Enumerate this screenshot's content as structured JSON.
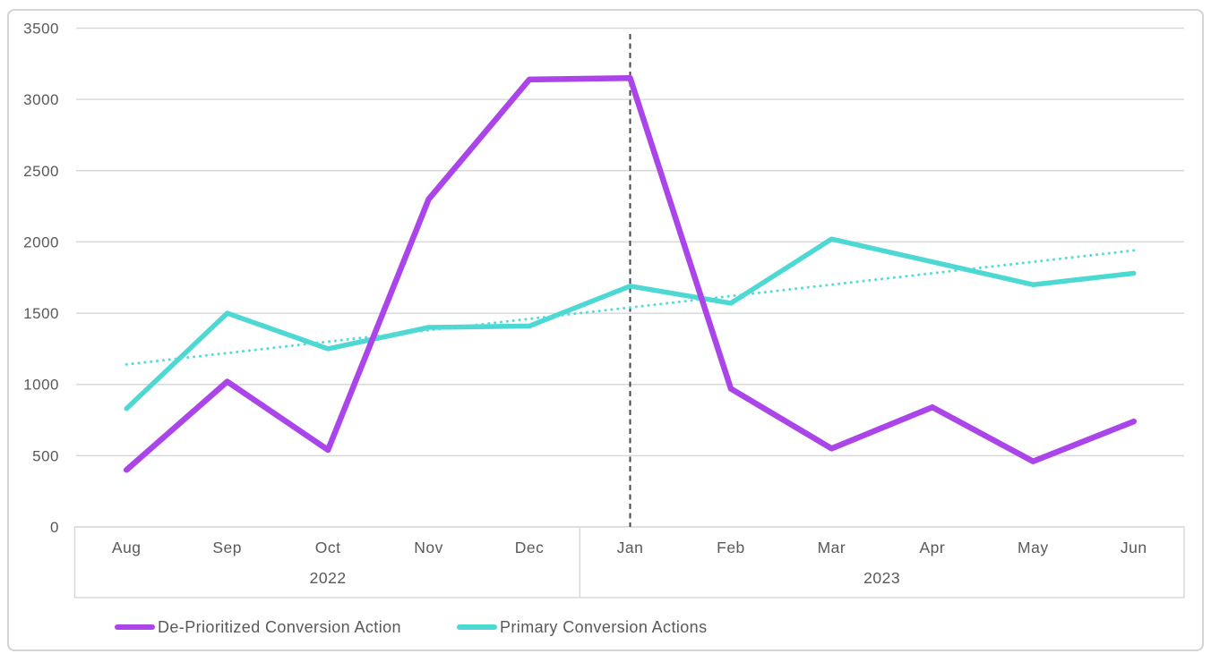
{
  "chart_data": {
    "type": "line",
    "title": "",
    "categories": [
      "Aug",
      "Sep",
      "Oct",
      "Nov",
      "Dec",
      "Jan",
      "Feb",
      "Mar",
      "Apr",
      "May",
      "Jun"
    ],
    "year_groups": [
      {
        "label": "2022",
        "months": 5
      },
      {
        "label": "2023",
        "months": 6
      }
    ],
    "series": [
      {
        "name": "De-Prioritized Conversion Action",
        "color": "#ab44e9",
        "values": [
          400,
          1020,
          540,
          2300,
          3140,
          3150,
          970,
          550,
          840,
          460,
          740
        ]
      },
      {
        "name": "Primary Conversion Actions",
        "color": "#4dd8d4",
        "values": [
          830,
          1500,
          1250,
          1400,
          1410,
          1690,
          1570,
          2020,
          1860,
          1700,
          1780
        ]
      }
    ],
    "trendline": {
      "for_series": "Primary Conversion Actions",
      "style": "dotted",
      "color": "#56dbd6",
      "start_value": 1140,
      "end_value": 1940
    },
    "annotation_vline": {
      "x_category": "Jan",
      "style": "dashed",
      "color": "#474747"
    },
    "y_axis": {
      "min": 0,
      "max": 3500,
      "step": 500
    },
    "axis_text_color": "#595959",
    "gridline_color": "#d9d9d9",
    "grid": true,
    "legend_position": "bottom-left"
  }
}
